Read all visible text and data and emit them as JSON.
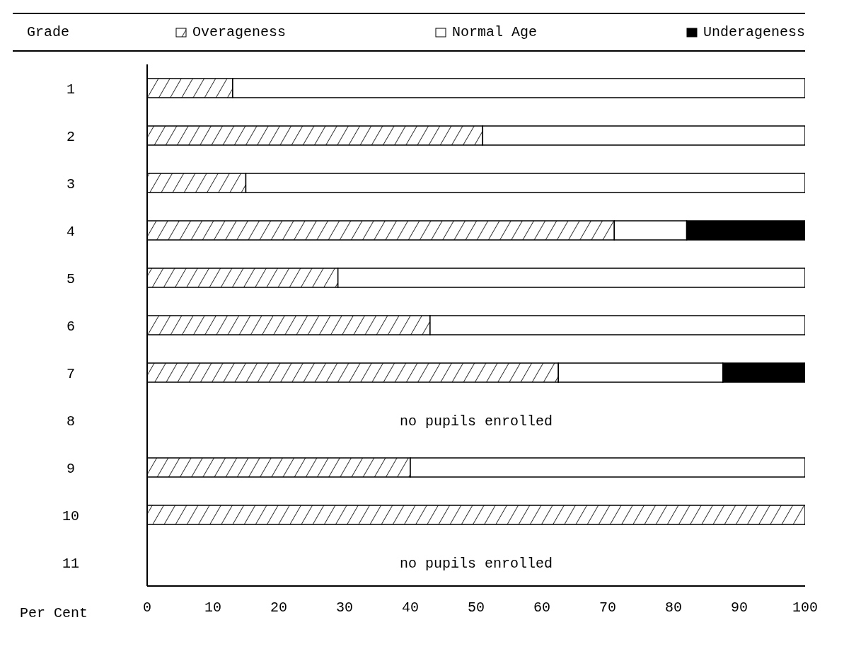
{
  "chart_data": {
    "type": "bar",
    "orientation": "horizontal",
    "stacked": true,
    "ylabel": "Grade",
    "xlabel": "Per Cent",
    "categories": [
      "1",
      "2",
      "3",
      "4",
      "5",
      "6",
      "7",
      "8",
      "9",
      "10",
      "11"
    ],
    "series": [
      {
        "name": "Overageness",
        "color": "#000000",
        "values": [
          13,
          51,
          15,
          71,
          29,
          43,
          62.5,
          null,
          40,
          100,
          null
        ]
      },
      {
        "name": "Normal Age",
        "color": "#ffffff",
        "values": [
          87,
          49,
          85,
          11,
          71,
          57,
          25,
          null,
          60,
          0,
          null
        ]
      },
      {
        "name": "Underageness",
        "color": "#000000",
        "values": [
          0,
          0,
          0,
          18,
          0,
          0,
          12.5,
          null,
          0,
          0,
          null
        ]
      }
    ],
    "xlim": [
      0,
      100
    ],
    "xticks": [
      0,
      10,
      20,
      30,
      40,
      50,
      60,
      70,
      80,
      90,
      100
    ],
    "legend": "top",
    "annotations": [
      "no pupils enrolled",
      "no pupils enrolled"
    ]
  }
}
